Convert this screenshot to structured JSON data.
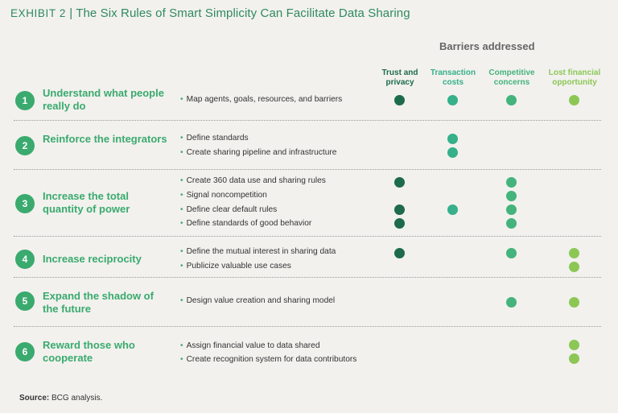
{
  "title": {
    "exhibit": "EXHIBIT 2",
    "sep": "|",
    "text": "The Six Rules of Smart Simplicity Can Facilitate Data Sharing"
  },
  "barriers_header": "Barriers addressed",
  "columns": [
    {
      "line1": "Trust and",
      "line2": "privacy",
      "color": "#1d6b4a"
    },
    {
      "line1": "Transaction",
      "line2": "costs",
      "color": "#35b08a"
    },
    {
      "line1": "Competitive",
      "line2": "concerns",
      "color": "#44b37c"
    },
    {
      "line1": "Lost financial",
      "line2": "opportunity",
      "color": "#8cc756"
    }
  ],
  "rules": [
    {
      "num": "1",
      "title": "Understand what people really do",
      "actions": [
        {
          "text": "Map agents, goals, resources, and barriers",
          "barriers": [
            1,
            2,
            3,
            4
          ]
        }
      ]
    },
    {
      "num": "2",
      "title": "Reinforce the integrators",
      "actions": [
        {
          "text": "Define standards",
          "barriers": [
            2
          ]
        },
        {
          "text": "Create sharing pipeline and infrastructure",
          "barriers": [
            2
          ]
        }
      ]
    },
    {
      "num": "3",
      "title": "Increase the total quantity of power",
      "actions": [
        {
          "text": "Create 360 data use and sharing rules",
          "barriers": [
            1,
            3
          ]
        },
        {
          "text": "Signal noncompetition",
          "barriers": [
            3
          ]
        },
        {
          "text": "Define clear default rules",
          "barriers": [
            1,
            2,
            3
          ]
        },
        {
          "text": "Define standards of good behavior",
          "barriers": [
            1,
            3
          ]
        }
      ]
    },
    {
      "num": "4",
      "title": "Increase reciprocity",
      "actions": [
        {
          "text": "Define the mutual interest in sharing data",
          "barriers": [
            1,
            3,
            4
          ]
        },
        {
          "text": "Publicize valuable use cases",
          "barriers": [
            4
          ]
        }
      ]
    },
    {
      "num": "5",
      "title": "Expand the shadow of the future",
      "actions": [
        {
          "text": "Design value creation and sharing model",
          "barriers": [
            3,
            4
          ]
        }
      ]
    },
    {
      "num": "6",
      "title": "Reward those who cooperate",
      "actions": [
        {
          "text": "Assign financial value to data shared",
          "barriers": [
            4
          ]
        },
        {
          "text": "Create recognition system for data contributors",
          "barriers": [
            4
          ]
        }
      ]
    }
  ],
  "source": {
    "label": "Source:",
    "text": "BCG analysis."
  }
}
